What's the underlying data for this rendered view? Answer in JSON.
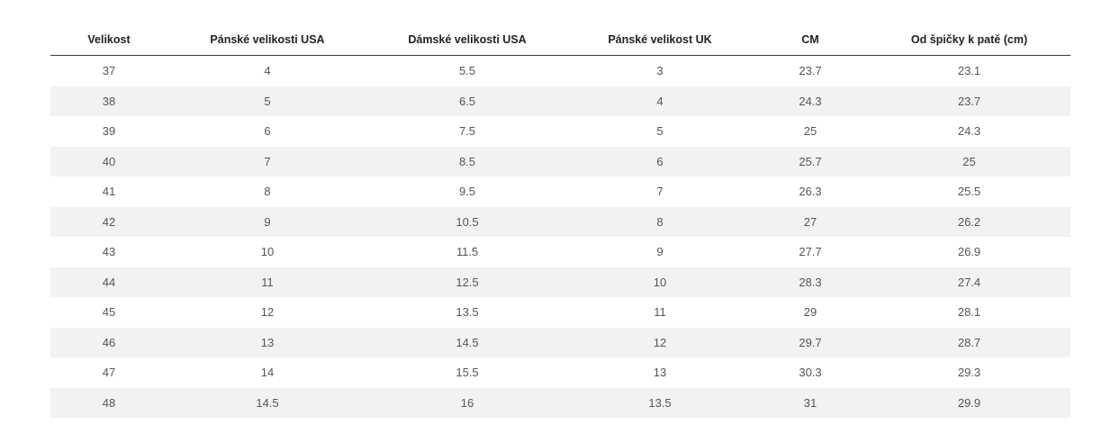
{
  "table": {
    "headers": [
      "Velikost",
      "Pánské velikosti USA",
      "Dámské velikosti USA",
      "Pánské velikost UK",
      "CM",
      "Od špičky k patě (cm)"
    ],
    "rows": [
      [
        "37",
        "4",
        "5.5",
        "3",
        "23.7",
        "23.1"
      ],
      [
        "38",
        "5",
        "6.5",
        "4",
        "24.3",
        "23.7"
      ],
      [
        "39",
        "6",
        "7.5",
        "5",
        "25",
        "24.3"
      ],
      [
        "40",
        "7",
        "8.5",
        "6",
        "25.7",
        "25"
      ],
      [
        "41",
        "8",
        "9.5",
        "7",
        "26.3",
        "25.5"
      ],
      [
        "42",
        "9",
        "10.5",
        "8",
        "27",
        "26.2"
      ],
      [
        "43",
        "10",
        "11.5",
        "9",
        "27.7",
        "26.9"
      ],
      [
        "44",
        "11",
        "12.5",
        "10",
        "28.3",
        "27.4"
      ],
      [
        "45",
        "12",
        "13.5",
        "11",
        "29",
        "28.1"
      ],
      [
        "46",
        "13",
        "14.5",
        "12",
        "29.7",
        "28.7"
      ],
      [
        "47",
        "14",
        "15.5",
        "13",
        "30.3",
        "29.3"
      ],
      [
        "48",
        "14.5",
        "16",
        "13.5",
        "31",
        "29.9"
      ]
    ]
  }
}
